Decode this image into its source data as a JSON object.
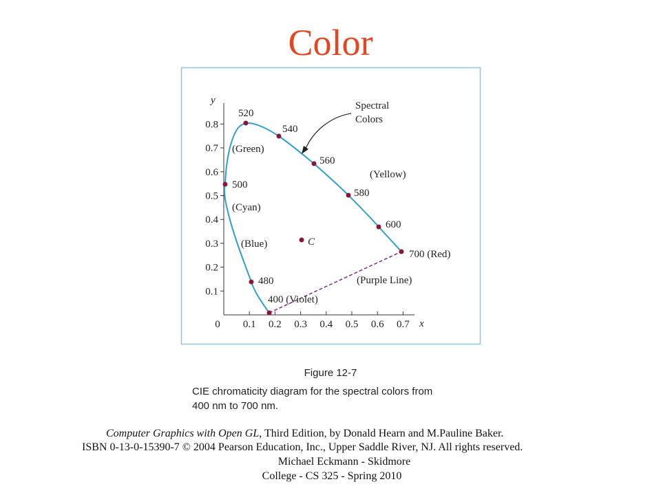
{
  "title": "Color",
  "figure": {
    "y_axis_label": "y",
    "x_axis_label": "x",
    "y_ticks": [
      "0.1",
      "0.2",
      "0.3",
      "0.4",
      "0.5",
      "0.6",
      "0.7",
      "0.8"
    ],
    "x_ticks": [
      "0",
      "0.1",
      "0.2",
      "0.3",
      "0.4",
      "0.5",
      "0.6",
      "0.7"
    ],
    "point_labels": [
      "520",
      "540",
      "560",
      "580",
      "600",
      "700 (Red)",
      "500",
      "480",
      "400 (Violet)"
    ],
    "region_labels": [
      "(Green)",
      "(Cyan)",
      "(Blue)",
      "(Yellow)",
      "(Purple Line)"
    ],
    "annotation": [
      "Spectral",
      "Colors"
    ],
    "point_c": "C"
  },
  "caption": {
    "figure_number": "Figure 12-7",
    "lines": [
      "CIE chromaticity diagram for the spectral colors from",
      "400 nm to 700 nm."
    ]
  },
  "citation": {
    "book_title": "Computer Graphics with Open GL",
    "rest": ", Third Edition, by Donald Hearn and M.Pauline Baker.",
    "isbn_line": "ISBN 0-13-0-15390-7 © 2004 Pearson Education, Inc., Upper Saddle River, NJ. All rights reserved."
  },
  "footer": [
    "Michael Eckmann - Skidmore",
    "College - CS 325 - Spring 2010"
  ]
}
